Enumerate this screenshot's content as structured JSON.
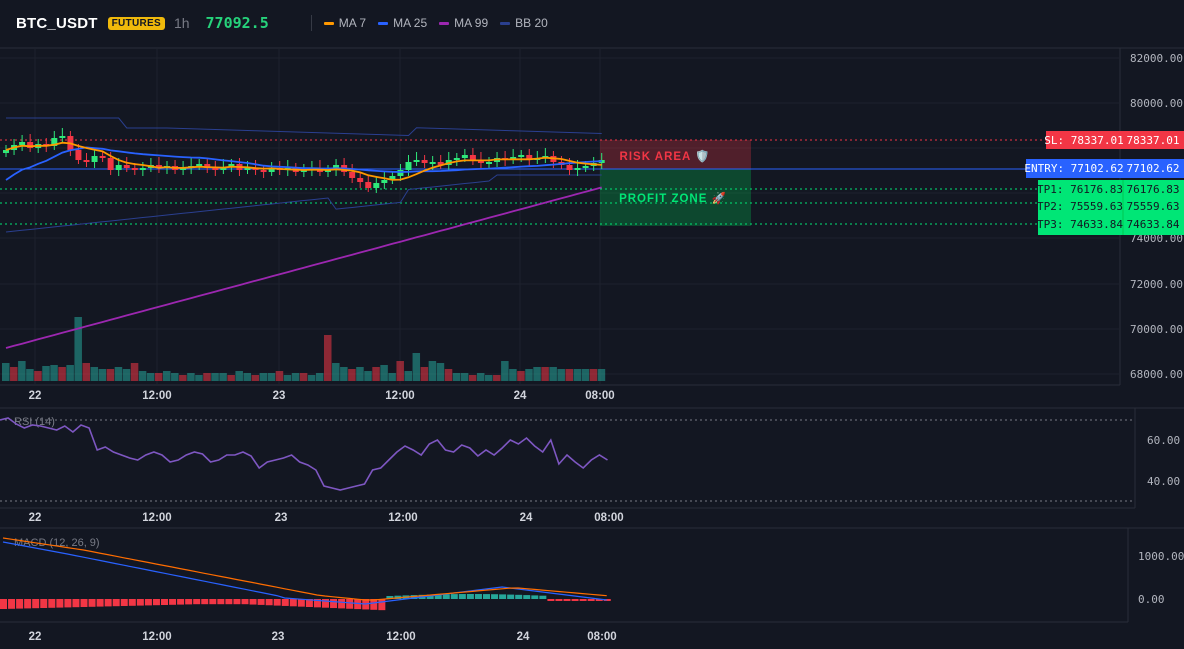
{
  "header": {
    "symbol": "BTC_USDT",
    "badge": "FUTURES",
    "interval": "1h",
    "last_price": "77092.5",
    "legend": [
      {
        "label": "MA 7",
        "color": "#ff9800"
      },
      {
        "label": "MA 25",
        "color": "#2962ff"
      },
      {
        "label": "MA 99",
        "color": "#9c27b0"
      },
      {
        "label": "BB 20",
        "color": "#2a3f8f"
      }
    ]
  },
  "price_axis": {
    "ticks": [
      "82000.00",
      "80000.00",
      "74000.00",
      "72000.00",
      "70000.00",
      "68000.00"
    ]
  },
  "levels": {
    "sl": {
      "label": "SL: 78337.01",
      "value": "78337.01",
      "color": "#f23645"
    },
    "entry": {
      "label": "ENTRY: 77102.62",
      "value": "77102.62",
      "color": "#2962ff"
    },
    "tp1": {
      "label": "TP1: 76176.83",
      "value": "76176.83",
      "color": "#00e676"
    },
    "tp2": {
      "label": "TP2: 75559.63",
      "value": "75559.63",
      "color": "#00e676"
    },
    "tp3": {
      "label": "TP3: 74633.84",
      "value": "74633.84",
      "color": "#00e676"
    }
  },
  "zones": {
    "risk_label": "RISK AREA 🛡️",
    "profit_label": "PROFIT ZONE 🚀"
  },
  "time_axis": [
    "22",
    "12:00",
    "23",
    "12:00",
    "24",
    "08:00"
  ],
  "rsi": {
    "title": "RSI (14)",
    "ticks": [
      "60.00",
      "40.00"
    ],
    "color": "#7e57c2"
  },
  "macd": {
    "title": "MACD (12, 26, 9)",
    "ticks": [
      "1000.00",
      "0.00"
    ]
  },
  "colors": {
    "up": "#26a69a",
    "up_bright": "#2ee87a",
    "down": "#f23645",
    "background": "#131722"
  }
}
